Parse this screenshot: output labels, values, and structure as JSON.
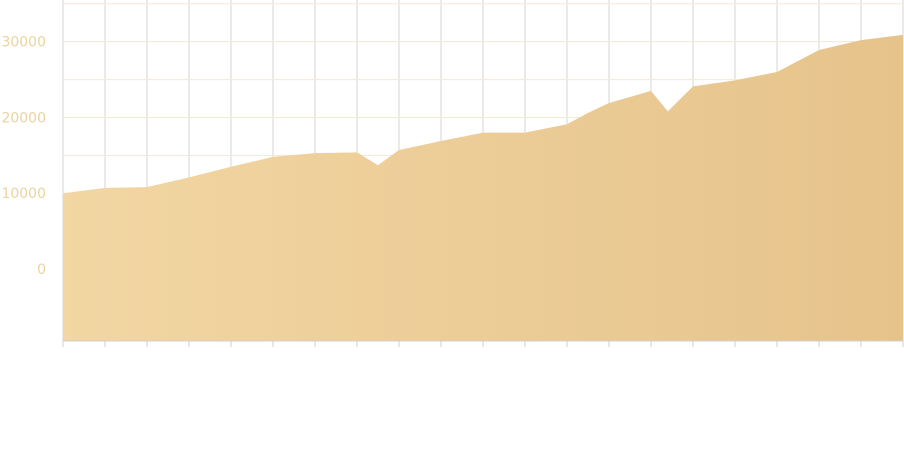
{
  "chart_data": {
    "type": "area",
    "title": "",
    "xlabel": "",
    "ylabel": "",
    "y_ticks": [
      "0",
      "10000",
      "20000",
      "30000"
    ],
    "y_tick_values": [
      0,
      10000,
      20000,
      30000
    ],
    "x": [
      0,
      1,
      2,
      3,
      4,
      5,
      6,
      7,
      7.5,
      8,
      9,
      10,
      11,
      12,
      12.5,
      13,
      14,
      14.4,
      15,
      16,
      17,
      18,
      19,
      20
    ],
    "values": [
      10000,
      10700,
      10800,
      12100,
      13500,
      14800,
      15300,
      15400,
      13700,
      15700,
      16900,
      18000,
      18000,
      19100,
      20600,
      21900,
      23500,
      20800,
      24100,
      24900,
      26000,
      28900,
      30200,
      30900
    ],
    "x_tick_count": 21,
    "ylim": [
      -9500,
      35500
    ],
    "grid": true,
    "colors": {
      "area_start": "#f2d6a3",
      "area_end": "#e6c38b",
      "tick_label": "#ebd3a1",
      "grid_vertical": "#d9d5cf",
      "grid_horizontal": "#f1ead7",
      "axis": "#cfcfcf"
    }
  }
}
